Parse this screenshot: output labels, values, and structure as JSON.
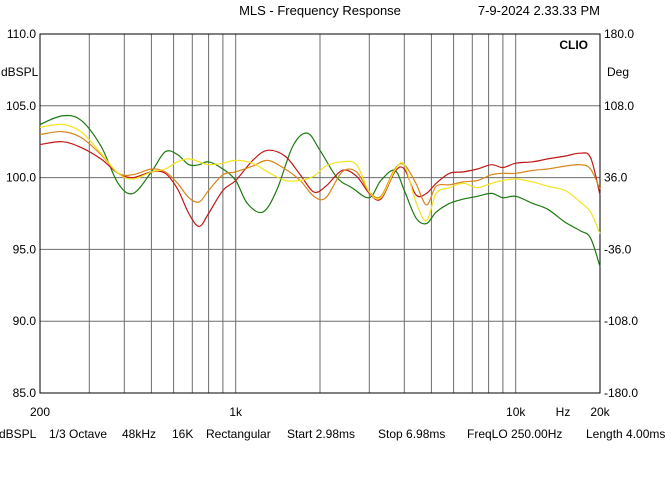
{
  "header": {
    "title": "MLS - Frequency Response",
    "timestamp": "7-9-2024 2.33.33 PM",
    "brand": "CLIO"
  },
  "chart_data": {
    "type": "line",
    "xscale": "log",
    "xlim": [
      200,
      20000
    ],
    "ylim": [
      85,
      110
    ],
    "ylim_right": [
      -180,
      180
    ],
    "ylabel": "dBSPL",
    "ylabel_right": "Deg",
    "xunit": "Hz",
    "grid": true,
    "x_tick_labels": [
      {
        "value": 200,
        "label": "200"
      },
      {
        "value": 1000,
        "label": "1k"
      },
      {
        "value": 10000,
        "label": "10k"
      },
      {
        "value": 20000,
        "label": "20k"
      }
    ],
    "x_gridlines": [
      200,
      300,
      400,
      500,
      600,
      700,
      800,
      900,
      1000,
      2000,
      3000,
      4000,
      5000,
      6000,
      7000,
      8000,
      9000,
      10000,
      20000
    ],
    "y_tick_labels_left": [
      "110.0",
      "105.0",
      "100.0",
      "95.0",
      "90.0",
      "85.0"
    ],
    "y_tick_values_left": [
      110,
      105,
      100,
      95,
      90,
      85
    ],
    "y_tick_labels_right": [
      "180.0",
      "108.0",
      "36.0",
      "-36.0",
      "-108.0",
      "-180.0"
    ],
    "series": [
      {
        "color": "#1b7a10",
        "x": [
          200,
          240,
          280,
          330,
          380,
          430,
          500,
          560,
          620,
          680,
          740,
          800,
          900,
          1000,
          1100,
          1250,
          1400,
          1600,
          1800,
          2000,
          2300,
          2600,
          3000,
          3300,
          3700,
          4000,
          4400,
          4800,
          5200,
          5800,
          6500,
          7300,
          8200,
          9000,
          10000,
          11500,
          13000,
          15000,
          17000,
          18500,
          20000
        ],
        "y": [
          103.7,
          104.3,
          104.0,
          102.2,
          99.6,
          98.9,
          100.4,
          101.8,
          101.6,
          100.9,
          100.9,
          101.1,
          100.6,
          99.8,
          98.2,
          97.6,
          99.1,
          102.2,
          103.1,
          101.9,
          100.0,
          99.3,
          98.6,
          99.8,
          100.5,
          99.1,
          97.2,
          96.8,
          97.6,
          98.2,
          98.5,
          98.7,
          98.9,
          98.6,
          98.7,
          98.2,
          97.8,
          96.9,
          96.3,
          95.8,
          93.8
        ]
      },
      {
        "color": "#c01818",
        "x": [
          200,
          240,
          280,
          330,
          380,
          430,
          500,
          560,
          620,
          680,
          740,
          800,
          900,
          1000,
          1150,
          1300,
          1500,
          1700,
          1900,
          2100,
          2400,
          2700,
          3000,
          3300,
          3700,
          4000,
          4400,
          4800,
          5200,
          5800,
          6500,
          7300,
          8200,
          9000,
          10000,
          11500,
          13000,
          15000,
          17000,
          18500,
          20000
        ],
        "y": [
          102.3,
          102.5,
          102.1,
          101.3,
          100.3,
          100.0,
          100.4,
          100.3,
          99.2,
          97.5,
          96.6,
          97.5,
          99.1,
          99.8,
          101.2,
          101.9,
          101.5,
          100.2,
          99.0,
          99.4,
          100.5,
          100.1,
          98.9,
          98.5,
          100.4,
          100.6,
          98.8,
          98.9,
          99.6,
          100.3,
          100.4,
          100.6,
          100.9,
          100.7,
          101.0,
          101.1,
          101.3,
          101.5,
          101.7,
          101.4,
          98.8
        ]
      },
      {
        "color": "#d8861c",
        "x": [
          200,
          240,
          280,
          330,
          380,
          430,
          500,
          560,
          620,
          680,
          740,
          800,
          900,
          1000,
          1150,
          1300,
          1500,
          1700,
          1900,
          2100,
          2400,
          2700,
          3000,
          3300,
          3700,
          4000,
          4400,
          4800,
          5200,
          5800,
          6500,
          7300,
          8200,
          9000,
          10000,
          11500,
          13000,
          15000,
          17000,
          18500,
          20000
        ],
        "y": [
          103.0,
          103.2,
          102.8,
          101.6,
          100.3,
          100.2,
          100.6,
          100.4,
          99.6,
          98.6,
          98.3,
          99.1,
          100.2,
          100.4,
          100.8,
          101.2,
          100.6,
          99.8,
          98.7,
          98.6,
          100.4,
          100.4,
          99.0,
          98.7,
          100.6,
          100.9,
          99.6,
          98.1,
          99.4,
          99.5,
          99.7,
          99.8,
          100.2,
          100.3,
          100.3,
          100.5,
          100.6,
          100.8,
          100.9,
          100.6,
          99.2
        ]
      },
      {
        "color": "#f2e41f",
        "x": [
          200,
          240,
          280,
          330,
          380,
          430,
          500,
          560,
          620,
          680,
          740,
          800,
          900,
          1000,
          1150,
          1300,
          1500,
          1700,
          1900,
          2100,
          2400,
          2700,
          3000,
          3300,
          3700,
          4000,
          4400,
          4800,
          5200,
          5800,
          6500,
          7300,
          8200,
          9000,
          10000,
          11500,
          13000,
          15000,
          17000,
          18500,
          20000
        ],
        "y": [
          103.5,
          103.7,
          103.2,
          101.7,
          100.3,
          99.9,
          100.4,
          100.6,
          101.1,
          101.3,
          101.1,
          100.9,
          101.0,
          101.2,
          101.0,
          100.4,
          99.8,
          99.8,
          100.1,
          100.8,
          101.1,
          100.9,
          99.0,
          98.6,
          100.5,
          100.9,
          98.3,
          97.0,
          98.9,
          99.3,
          99.6,
          99.3,
          99.6,
          99.8,
          99.9,
          99.7,
          99.4,
          99.1,
          98.3,
          97.6,
          96.1
        ]
      }
    ]
  },
  "status_bar": {
    "unit": "dBSPL",
    "smoothing": "1/3 Octave",
    "sample_rate": "48kHz",
    "size": "16K",
    "window": "Rectangular",
    "start": "Start 2.98ms",
    "stop": "Stop 6.98ms",
    "freqlo": "FreqLO 250.00Hz",
    "length": "Length 4.00ms"
  }
}
